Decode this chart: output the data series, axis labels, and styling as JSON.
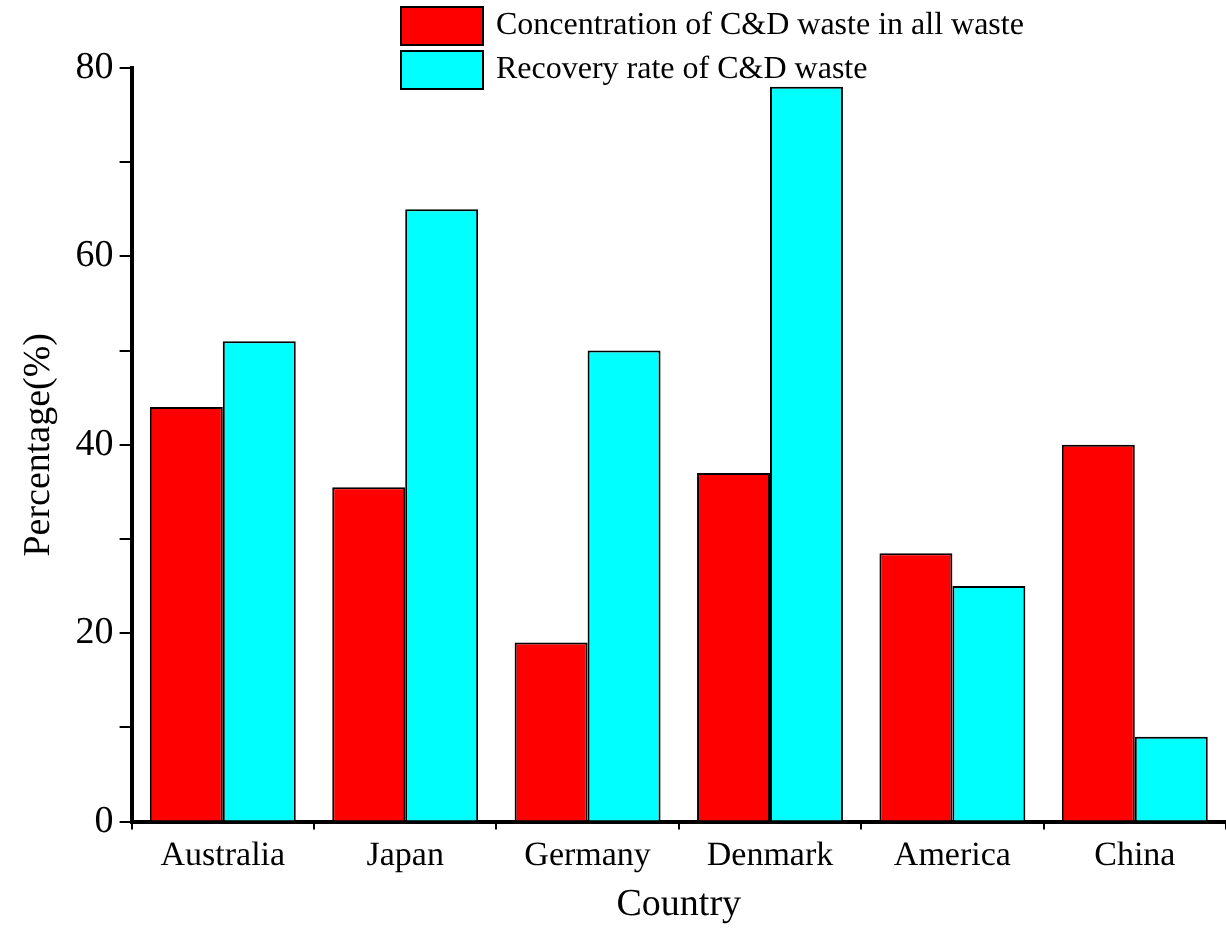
{
  "chart_data": {
    "type": "bar",
    "xlabel": "Country",
    "ylabel": "Percentage(%)",
    "categories": [
      "Australia",
      "Japan",
      "Germany",
      "Denmark",
      "America",
      "China"
    ],
    "series": [
      {
        "name": "Concentration of C&D waste in all waste",
        "color": "#ff0000",
        "values": [
          44,
          35.5,
          19,
          37,
          28.5,
          40
        ]
      },
      {
        "name": "Recovery rate of C&D waste",
        "color": "#00ffff",
        "values": [
          51,
          65,
          50,
          78,
          25,
          9
        ]
      }
    ],
    "ylim": [
      0,
      80
    ],
    "yticks": [
      0,
      {
        "value": 10,
        "label": null
      },
      20,
      {
        "value": 30,
        "label": null
      },
      40,
      {
        "value": 50,
        "label": null
      },
      60,
      {
        "value": 70,
        "label": null
      },
      80
    ],
    "grid": false,
    "legend": "top right"
  }
}
